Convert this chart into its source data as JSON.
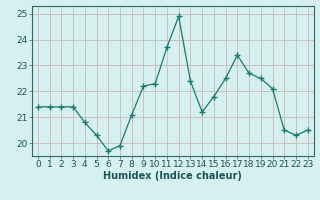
{
  "x": [
    0,
    1,
    2,
    3,
    4,
    5,
    6,
    7,
    8,
    9,
    10,
    11,
    12,
    13,
    14,
    15,
    16,
    17,
    18,
    19,
    20,
    21,
    22,
    23
  ],
  "y": [
    21.4,
    21.4,
    21.4,
    21.4,
    20.8,
    20.3,
    19.7,
    19.9,
    21.1,
    22.2,
    22.3,
    23.7,
    24.9,
    22.4,
    21.2,
    21.8,
    22.5,
    23.4,
    22.7,
    22.5,
    22.1,
    20.5,
    20.3,
    20.5
  ],
  "line_color": "#1a7a6e",
  "marker_color": "#1a7a6e",
  "bg_color": "#d6f0f0",
  "grid_color": "#c8b8b8",
  "xlabel": "Humidex (Indice chaleur)",
  "ylim_min": 19.5,
  "ylim_max": 25.3,
  "xlim_min": -0.5,
  "xlim_max": 23.5,
  "yticks": [
    20,
    21,
    22,
    23,
    24,
    25
  ],
  "xtick_labels": [
    "0",
    "1",
    "2",
    "3",
    "4",
    "5",
    "6",
    "7",
    "8",
    "9",
    "10",
    "11",
    "12",
    "13",
    "14",
    "15",
    "16",
    "17",
    "18",
    "19",
    "20",
    "21",
    "22",
    "23"
  ],
  "xlabel_fontsize": 7,
  "tick_fontsize": 6.5
}
